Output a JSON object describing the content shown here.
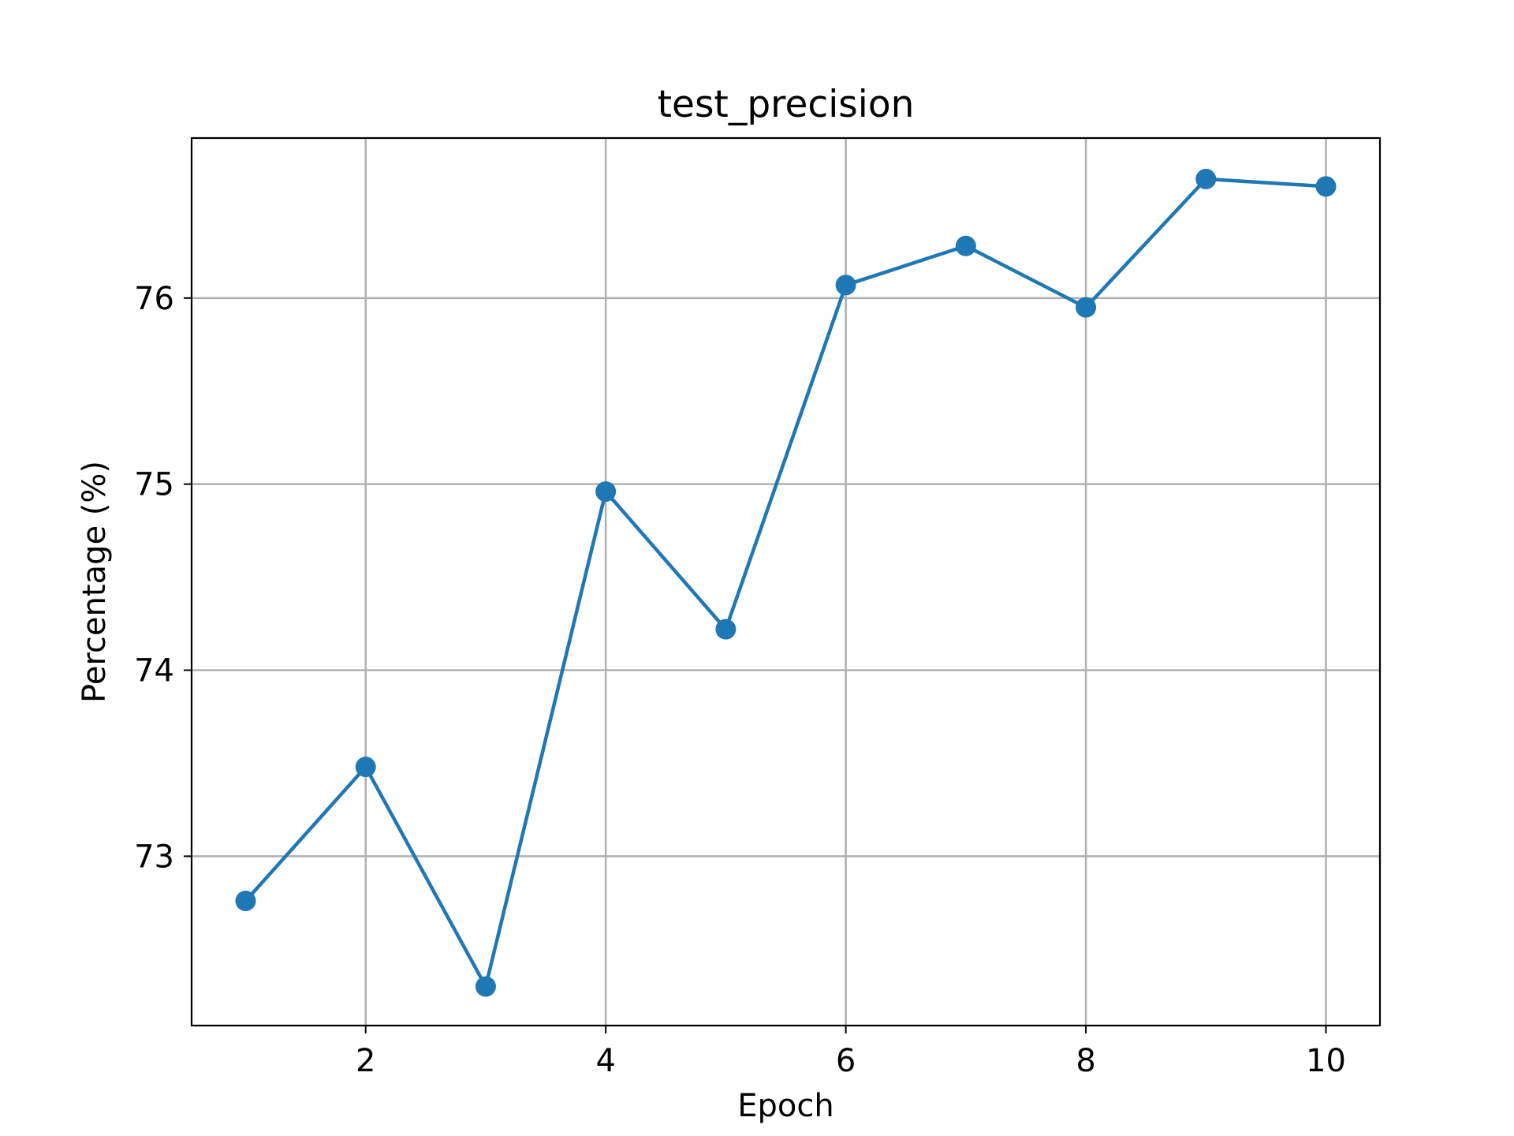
{
  "chart_data": {
    "type": "line",
    "title": "test_precision",
    "xlabel": "Epoch",
    "ylabel": "Percentage (%)",
    "x": [
      1,
      2,
      3,
      4,
      5,
      6,
      7,
      8,
      9,
      10
    ],
    "series": [
      {
        "values": [
          72.76,
          73.48,
          72.3,
          74.96,
          74.22,
          76.07,
          76.28,
          75.95,
          76.64,
          76.6
        ],
        "color": "#1f77b4",
        "marker": "circle"
      }
    ],
    "xticks": [
      2,
      4,
      6,
      8,
      10
    ],
    "xtick_labels": [
      "2",
      "4",
      "6",
      "8",
      "10"
    ],
    "yticks": [
      73,
      74,
      75,
      76
    ],
    "ytick_labels": [
      "73",
      "74",
      "75",
      "76"
    ],
    "xlim": [
      0.55,
      10.45
    ],
    "ylim": [
      72.09,
      76.86
    ],
    "grid": true,
    "legend": "none"
  }
}
